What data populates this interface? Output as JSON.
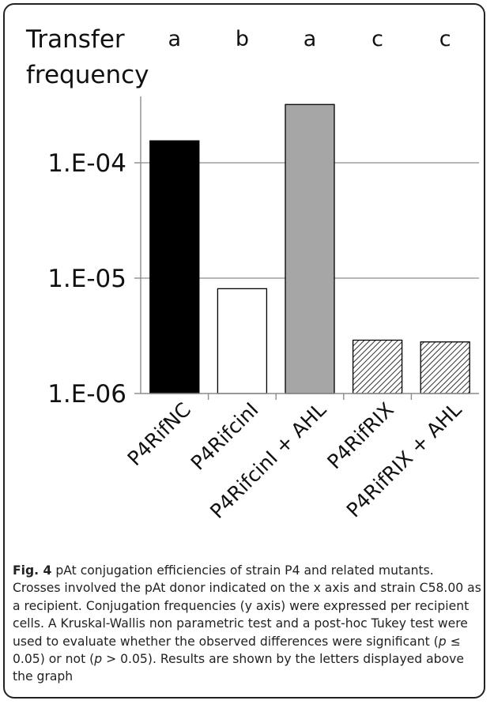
{
  "chart_data": {
    "type": "bar",
    "ylabel": "Transfer frequency",
    "ylabel_lines": [
      "Transfer",
      "frequency"
    ],
    "yscale": "log",
    "ylim": [
      1e-06,
      0.0004
    ],
    "yticks": [
      1e-06,
      1e-05,
      0.0001
    ],
    "ytick_labels": [
      "1.E-06",
      "1.E-05",
      "1.E-04"
    ],
    "grid": true,
    "categories": [
      "P4RifNC",
      "P4RifcinI",
      "P4RifcinI + AHL",
      "P4RifRIX",
      "P4RifRIX + AHL"
    ],
    "values": [
      0.000155,
      8.1e-06,
      0.00032,
      2.9e-06,
      2.8e-06
    ],
    "significance_letters": [
      "a",
      "b",
      "a",
      "c",
      "c"
    ],
    "bar_fills": [
      "solid-black",
      "white",
      "solid-gray",
      "hatched",
      "hatched"
    ],
    "colors": {
      "black": "#000000",
      "gray": "#a6a6a6",
      "white": "#ffffff",
      "grid": "#8c8c8c",
      "hatch": "#333333"
    }
  },
  "caption": {
    "label": "Fig. 4",
    "text_before_p1": " pAt conjugation efficiencies of strain P4 and related mutants. Crosses involved the pAt donor indicated on the x axis and strain C58.00 as a recipient. Conjugation frequencies (y axis) were expressed per recipient cells. A Kruskal-Wallis non parametric test and a post-hoc Tukey test were used to evaluate whether the observed differences were significant (",
    "p1": "p",
    "mid": " ≤ 0.05) or not (",
    "p2": "p",
    "text_after_p2": " > 0.05). Results are shown by the letters displayed above the graph"
  }
}
